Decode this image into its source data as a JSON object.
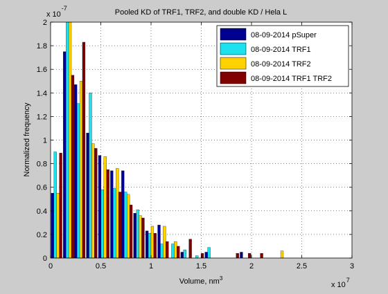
{
  "chart_data": {
    "type": "bar",
    "title": "Pooled KD of TRF1, TRF2, and double KD / Hela L",
    "xlabel": "Volume, nm",
    "xlabel_superscript": "3",
    "ylabel": "Normalized frequency",
    "x_exponent_base": "x 10",
    "x_exponent_power": "7",
    "y_exponent_base": "x 10",
    "y_exponent_power": "-7",
    "xlim": [
      0,
      3
    ],
    "ylim": [
      0,
      2
    ],
    "x_ticks": [
      0,
      0.5,
      1,
      1.5,
      2,
      2.5,
      3
    ],
    "x_tick_labels": [
      "0",
      "0.5",
      "1",
      "1.5",
      "2",
      "2.5",
      "3"
    ],
    "y_ticks": [
      0,
      0.2,
      0.4,
      0.6,
      0.8,
      1,
      1.2,
      1.4,
      1.6,
      1.8,
      2
    ],
    "y_tick_labels": [
      "0",
      "0.2",
      "0.4",
      "0.6",
      "0.8",
      "1",
      "1.2",
      "1.4",
      "1.6",
      "1.8",
      "2"
    ],
    "grid": true,
    "legend_position": "top-right",
    "bin_width": 0.1175,
    "x": [
      0.06,
      0.18,
      0.29,
      0.41,
      0.53,
      0.65,
      0.76,
      0.88,
      1.0,
      1.12,
      1.23,
      1.35,
      1.47,
      1.59,
      1.7,
      1.82,
      1.94,
      2.06,
      2.17,
      2.29,
      2.41
    ],
    "series": [
      {
        "name": "08-09-2014 pSuper",
        "color": "#00008f",
        "values": [
          0.55,
          1.75,
          1.47,
          1.06,
          0.87,
          0.74,
          0.74,
          0.38,
          0.23,
          0.28,
          0.0,
          0.05,
          0.0,
          0.05,
          0.0,
          0.0,
          0.05,
          0.0,
          0.0,
          0.0,
          0.0
        ]
      },
      {
        "name": "08-09-2014 TRF1",
        "color": "#1ee1ee",
        "values": [
          0.9,
          2.0,
          1.31,
          1.4,
          0.58,
          0.59,
          0.56,
          0.41,
          0.21,
          0.12,
          0.12,
          0.07,
          0.02,
          0.09,
          0.0,
          0.0,
          0.0,
          0.0,
          0.0,
          0.0,
          0.0
        ]
      },
      {
        "name": "08-09-2014 TRF2",
        "color": "#ffd200",
        "values": [
          0.55,
          2.0,
          1.5,
          0.97,
          0.86,
          0.76,
          0.54,
          0.36,
          0.27,
          0.27,
          0.14,
          0.0,
          0.0,
          0.0,
          0.0,
          0.0,
          0.0,
          0.0,
          0.0,
          0.06,
          0.0
        ]
      },
      {
        "name": "08-09-2014 TRF1 TRF2",
        "color": "#800000",
        "values": [
          0.89,
          1.55,
          1.83,
          0.93,
          0.75,
          0.56,
          0.45,
          0.34,
          0.21,
          0.14,
          0.1,
          0.16,
          0.04,
          0.0,
          0.0,
          0.04,
          0.04,
          0.04,
          0.0,
          0.0,
          0.0
        ]
      }
    ]
  }
}
